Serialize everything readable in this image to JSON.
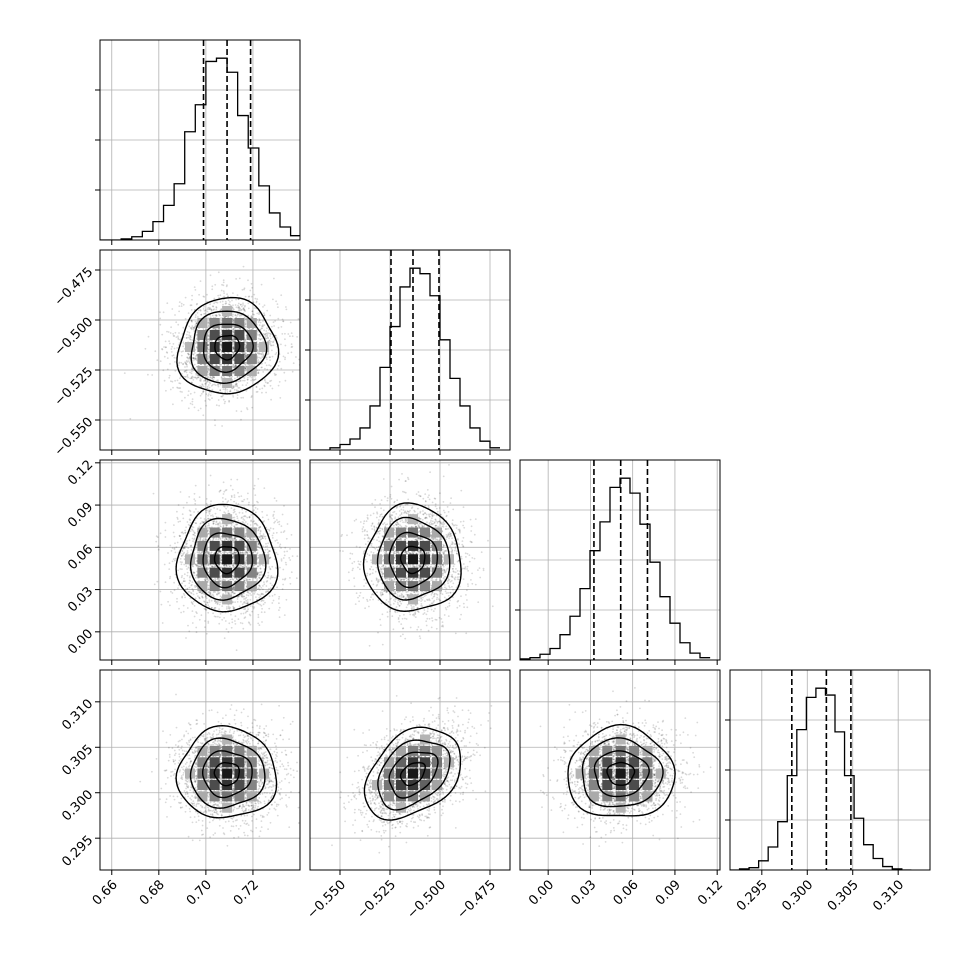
{
  "chart_data": {
    "type": "corner",
    "title": "",
    "grid": true,
    "colors": {
      "hist": "#000000",
      "grid": "#b0b0b0",
      "samples": "#000000",
      "frame": "#000000"
    },
    "parameters": [
      {
        "range": [
          0.655,
          0.74
        ],
        "ticks": [
          0.66,
          0.68,
          0.7,
          0.72
        ],
        "tick_labels": [
          "0.66",
          "0.68",
          "0.70",
          "0.72"
        ],
        "quantiles": [
          0.699,
          0.709,
          0.719
        ],
        "mean": 0.709,
        "sd": 0.0105,
        "histogram": {
          "bin_edges": [
            0.655,
            0.6595,
            0.664,
            0.6685,
            0.673,
            0.6775,
            0.682,
            0.6865,
            0.691,
            0.6955,
            0.7,
            0.7045,
            0.709,
            0.7135,
            0.718,
            0.7225,
            0.727,
            0.7315,
            0.736,
            0.7405
          ],
          "counts": [
            0,
            0,
            1,
            3,
            8,
            17,
            32,
            52,
            100,
            125,
            165,
            168,
            155,
            115,
            85,
            50,
            25,
            12,
            4
          ]
        }
      },
      {
        "range": [
          -0.565,
          -0.465
        ],
        "ticks": [
          -0.55,
          -0.525,
          -0.5,
          -0.475
        ],
        "tick_labels": [
          "−0.550",
          "−0.525",
          "−0.500",
          "−0.475"
        ],
        "quantiles": [
          -0.5245,
          -0.5135,
          -0.5005
        ],
        "mean": -0.5135,
        "sd": 0.012,
        "histogram": {
          "bin_edges": [
            -0.565,
            -0.56,
            -0.555,
            -0.55,
            -0.545,
            -0.54,
            -0.535,
            -0.53,
            -0.525,
            -0.52,
            -0.515,
            -0.51,
            -0.505,
            -0.5,
            -0.495,
            -0.49,
            -0.485,
            -0.48,
            -0.475,
            -0.47
          ],
          "counts": [
            0,
            0,
            2,
            5,
            10,
            20,
            40,
            75,
            112,
            148,
            165,
            160,
            140,
            100,
            65,
            40,
            20,
            8,
            2
          ]
        }
      },
      {
        "range": [
          -0.02,
          0.122
        ],
        "ticks": [
          0.0,
          0.03,
          0.06,
          0.09,
          0.12
        ],
        "tick_labels": [
          "0.00",
          "0.03",
          "0.06",
          "0.09",
          "0.12"
        ],
        "quantiles": [
          0.0325,
          0.0515,
          0.0705
        ],
        "mean": 0.0515,
        "sd": 0.019,
        "histogram": {
          "bin_edges": [
            -0.02,
            -0.0129,
            -0.0058,
            0.0013,
            0.0084,
            0.0155,
            0.0226,
            0.0297,
            0.0368,
            0.0439,
            0.051,
            0.0581,
            0.0652,
            0.0723,
            0.0794,
            0.0865,
            0.0936,
            0.1007,
            0.1078,
            0.115
          ],
          "counts": [
            1,
            2,
            5,
            10,
            22,
            38,
            62,
            95,
            120,
            150,
            158,
            145,
            118,
            85,
            55,
            32,
            15,
            6,
            2
          ]
        }
      },
      {
        "range": [
          0.2915,
          0.3135
        ],
        "ticks": [
          0.295,
          0.3,
          0.305,
          0.31
        ],
        "tick_labels": [
          "0.295",
          "0.300",
          "0.305",
          "0.310"
        ],
        "quantiles": [
          0.2983,
          0.3021,
          0.3048
        ],
        "mean": 0.3021,
        "sd": 0.0025,
        "histogram": {
          "bin_edges": [
            0.2915,
            0.29255,
            0.2936,
            0.29465,
            0.2957,
            0.29675,
            0.2978,
            0.29885,
            0.2999,
            0.30095,
            0.302,
            0.30305,
            0.3041,
            0.30515,
            0.3062,
            0.30725,
            0.3083,
            0.30935,
            0.3104,
            0.31145
          ],
          "counts": [
            0,
            1,
            2,
            8,
            20,
            42,
            82,
            122,
            150,
            158,
            152,
            120,
            82,
            45,
            22,
            10,
            3,
            1,
            0
          ]
        }
      }
    ],
    "correlations": {
      "1,0": 0.05,
      "2,0": 0.0,
      "2,1": 0.0,
      "3,0": 0.0,
      "3,1": 0.35,
      "3,2": 0.0
    },
    "contour_levels_sigma": [
      0.5,
      1.0,
      1.5,
      2.0
    ]
  }
}
